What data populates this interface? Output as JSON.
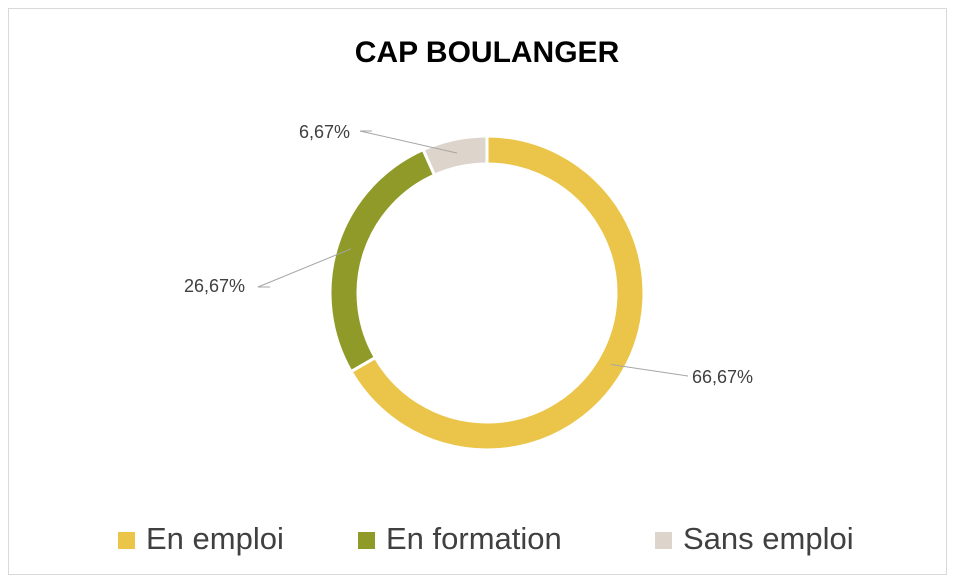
{
  "chart_data": {
    "type": "donut",
    "title": "CAP BOULANGER",
    "categories": [
      "En emploi",
      "En formation",
      "Sans emploi"
    ],
    "values": [
      66.67,
      26.67,
      6.67
    ],
    "value_labels": [
      "66,67%",
      "26,67%",
      "6,67%"
    ],
    "colors": [
      "#ebc54a",
      "#8f9a28",
      "#ddd5cc"
    ],
    "legend": "bottom"
  }
}
